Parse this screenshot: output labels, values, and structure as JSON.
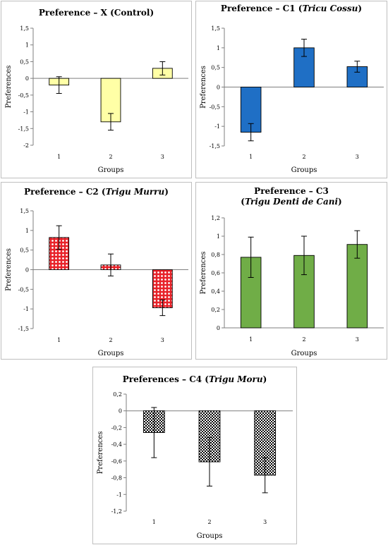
{
  "chart_data": [
    {
      "type": "bar",
      "title": "Preference – X (Control)",
      "title_parts": [
        {
          "text": "Preference – X (Control)",
          "italic": false
        }
      ],
      "categories": [
        "1",
        "2",
        "3"
      ],
      "values": [
        -0.2,
        -1.3,
        0.3
      ],
      "errors": [
        0.25,
        0.25,
        0.2
      ],
      "xlabel": "Groups",
      "ylabel": "Preferences",
      "ylim": [
        -2,
        1.5
      ],
      "yticks": [
        -2,
        -1.5,
        -1,
        -0.5,
        0,
        0.5,
        1,
        1.5
      ],
      "ytick_labels": [
        "-2",
        "-1,5",
        "-1",
        "-0,5",
        "0",
        "0,5",
        "1",
        "1,5"
      ],
      "color": "#ffffa6",
      "pattern": "solid",
      "grid": false
    },
    {
      "type": "bar",
      "title": "Preference – C1 (Tricu Cossu)",
      "title_parts": [
        {
          "text": "Preference – C1 (",
          "italic": false
        },
        {
          "text": "Tricu Cossu",
          "italic": true
        },
        {
          "text": ")",
          "italic": false
        }
      ],
      "categories": [
        "1",
        "2",
        "3"
      ],
      "values": [
        -1.15,
        1.0,
        0.52
      ],
      "errors": [
        0.22,
        0.22,
        0.14
      ],
      "xlabel": "Groups",
      "ylabel": "Preferences",
      "ylim": [
        -1.5,
        1.5
      ],
      "yticks": [
        -1.5,
        -1,
        -0.5,
        0,
        0.5,
        1,
        1.5
      ],
      "ytick_labels": [
        "-1,5",
        "-1",
        "-0,5",
        "0",
        "0,5",
        "1",
        "1,5"
      ],
      "color": "#1f6fc5",
      "pattern": "solid",
      "grid": false
    },
    {
      "type": "bar",
      "title": "Preference – C2 (Trigu Murru)",
      "title_parts": [
        {
          "text": "Preference – C2 (",
          "italic": false
        },
        {
          "text": "Trigu Murru",
          "italic": true
        },
        {
          "text": ")",
          "italic": false
        }
      ],
      "categories": [
        "1",
        "2",
        "3"
      ],
      "values": [
        0.82,
        0.12,
        -0.97
      ],
      "errors": [
        0.3,
        0.28,
        0.2
      ],
      "xlabel": "Groups",
      "ylabel": "Preferences",
      "ylim": [
        -1.5,
        1.5
      ],
      "yticks": [
        -1.5,
        -1,
        -0.5,
        0,
        0.5,
        1,
        1.5
      ],
      "ytick_labels": [
        "-1,5",
        "-1",
        "-0,5",
        "0",
        "0,5",
        "1",
        "1,5"
      ],
      "color": "#e8232a",
      "pattern": "dots",
      "grid": false
    },
    {
      "type": "bar",
      "title": "Preference – C3 (Trigu Denti de Cani)",
      "title_parts": [
        {
          "text": "Preference – C3",
          "italic": false
        }
      ],
      "title_line2_parts": [
        {
          "text": "(",
          "italic": false
        },
        {
          "text": "Trigu Denti de Cani",
          "italic": true
        },
        {
          "text": ")",
          "italic": false
        }
      ],
      "categories": [
        "1",
        "2",
        "3"
      ],
      "values": [
        0.77,
        0.79,
        0.91
      ],
      "errors": [
        0.22,
        0.21,
        0.15
      ],
      "xlabel": "Groups",
      "ylabel": "Preferences",
      "ylim": [
        0,
        1.2
      ],
      "yticks": [
        0,
        0.2,
        0.4,
        0.6,
        0.8,
        1,
        1.2
      ],
      "ytick_labels": [
        "0",
        "0,2",
        "0,4",
        "0,6",
        "0,8",
        "1",
        "1,2"
      ],
      "color": "#70ad47",
      "pattern": "solid",
      "grid": false
    },
    {
      "type": "bar",
      "title": "Preferences – C4 (Trigu Moru)",
      "title_parts": [
        {
          "text": "Preferences – C4 (",
          "italic": false
        },
        {
          "text": "Trigu Moru",
          "italic": true
        },
        {
          "text": ")",
          "italic": false
        }
      ],
      "categories": [
        "1",
        "2",
        "3"
      ],
      "values": [
        -0.26,
        -0.61,
        -0.77
      ],
      "errors": [
        0.3,
        0.29,
        0.21
      ],
      "xlabel": "Groups",
      "ylabel": "Preferences",
      "ylim": [
        -1.2,
        0.2
      ],
      "yticks": [
        -1.2,
        -1,
        -0.8,
        -0.6,
        -0.4,
        -0.2,
        0,
        0.2
      ],
      "ytick_labels": [
        "-1,2",
        "-1",
        "-0,8",
        "-0,6",
        "-0,4",
        "-0,2",
        "0",
        "0,2"
      ],
      "color": "#000000",
      "pattern": "checker",
      "grid": false
    }
  ]
}
